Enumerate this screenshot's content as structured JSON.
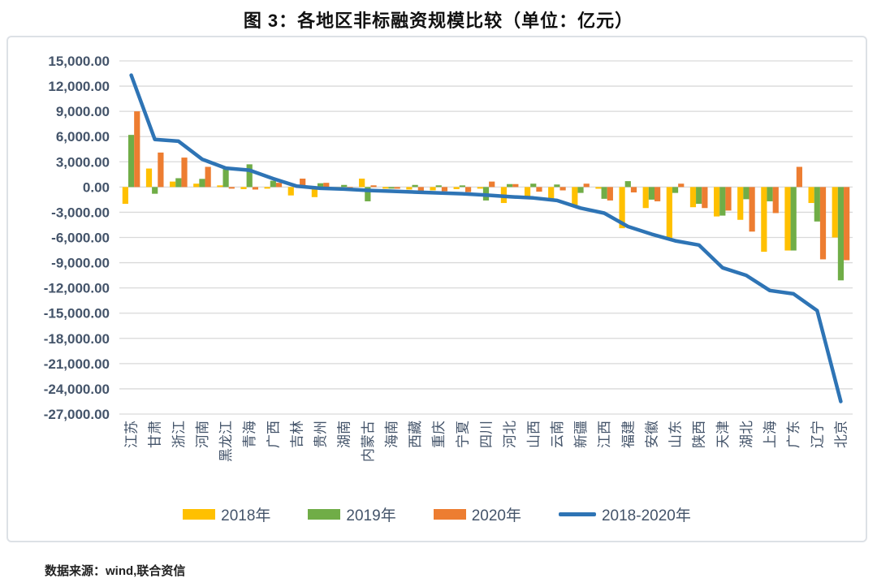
{
  "title": "图 3：各地区非标融资规模比较（单位：亿元）",
  "source_note": "数据来源：wind,联合资信",
  "colors": {
    "bar_2018": "#FFC000",
    "bar_2019": "#70AD47",
    "bar_2020": "#ED7D31",
    "line_total": "#2E74B5",
    "gridline": "#D9D9D9",
    "axis_text": "#44546A",
    "title_text": "#111111",
    "chart_border": "#DDE1E6"
  },
  "chart_data": {
    "type": "bar",
    "subtype": "grouped-bars-with-line-overlay",
    "title": "图 3：各地区非标融资规模比较（单位：亿元）",
    "xlabel": "",
    "ylabel": "",
    "grid": true,
    "legend_position": "bottom",
    "ylim": [
      -27000,
      15000
    ],
    "y_tick_step": 3000,
    "y_tick_labels": [
      "15,000.00",
      "12,000.00",
      "9,000.00",
      "6,000.00",
      "3,000.00",
      "0.00",
      "-3,000.00",
      "-6,000.00",
      "-9,000.00",
      "-12,000.00",
      "-15,000.00",
      "-18,000.00",
      "-21,000.00",
      "-24,000.00",
      "-27,000.00"
    ],
    "categories": [
      "江苏",
      "甘肃",
      "浙江",
      "河南",
      "黑龙江",
      "青海",
      "广西",
      "吉林",
      "贵州",
      "湖南",
      "内蒙古",
      "海南",
      "西藏",
      "重庆",
      "宁夏",
      "四川",
      "河北",
      "山西",
      "云南",
      "新疆",
      "江西",
      "福建",
      "安徽",
      "山东",
      "陕西",
      "天津",
      "湖北",
      "上海",
      "广东",
      "辽宁",
      "北京"
    ],
    "series": [
      {
        "name": "2018年",
        "type": "bar",
        "color": "#FFC000",
        "values": [
          -2000,
          2200,
          650,
          400,
          100,
          -250,
          -150,
          -1000,
          -1200,
          -200,
          1000,
          -150,
          -300,
          -400,
          -250,
          -100,
          -1900,
          -1100,
          -1500,
          -2300,
          -200,
          -4900,
          -2500,
          -6100,
          -2400,
          -3500,
          -3900,
          -7700,
          -7550,
          -1900,
          -6000
        ]
      },
      {
        "name": "2019年",
        "type": "bar",
        "color": "#70AD47",
        "values": [
          6200,
          -800,
          1050,
          970,
          2400,
          2700,
          750,
          100,
          450,
          250,
          -1700,
          -100,
          250,
          200,
          150,
          -1600,
          350,
          400,
          300,
          -700,
          -1400,
          700,
          -1500,
          -700,
          -2000,
          -3400,
          -1450,
          -1700,
          -7550,
          -4100,
          -11100
        ]
      },
      {
        "name": "2020年",
        "type": "bar",
        "color": "#ED7D31",
        "values": [
          9000,
          4100,
          3500,
          2400,
          -150,
          -300,
          500,
          1000,
          500,
          -300,
          200,
          -200,
          -550,
          -500,
          -600,
          650,
          350,
          -550,
          -400,
          400,
          -1600,
          -640,
          -1700,
          400,
          -2500,
          -2800,
          -5300,
          -3100,
          2400,
          -8600,
          -8700
        ]
      },
      {
        "name": "2018-2020年",
        "type": "line",
        "color": "#2E74B5",
        "values": [
          13300,
          5650,
          5450,
          3300,
          2250,
          2000,
          1000,
          100,
          -150,
          -250,
          -400,
          -500,
          -600,
          -700,
          -800,
          -950,
          -1150,
          -1300,
          -1600,
          -2500,
          -3100,
          -4700,
          -5600,
          -6400,
          -6900,
          -9600,
          -10500,
          -12300,
          -12700,
          -14700,
          -25500
        ]
      }
    ]
  }
}
